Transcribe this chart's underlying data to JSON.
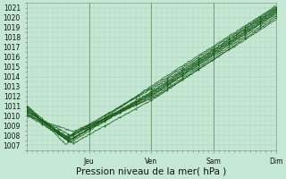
{
  "title": "Pression niveau de la mer( hPa )",
  "ylabel_ticks": [
    1007,
    1008,
    1009,
    1010,
    1011,
    1012,
    1013,
    1014,
    1015,
    1016,
    1017,
    1018,
    1019,
    1020,
    1021
  ],
  "ylim": [
    1006.5,
    1021.5
  ],
  "xlim": [
    0,
    96
  ],
  "x_ticks": [
    24,
    48,
    72,
    96
  ],
  "x_tick_labels": [
    "Jeu",
    "Ven",
    "Sam",
    "Dim"
  ],
  "bg_color": "#c5e8d5",
  "grid_color": "#a8c8b8",
  "line_color": "#1a5c1a",
  "marker_color": "#1a5c1a",
  "text_color": "#111111",
  "font_size": 5.5,
  "label_font_size": 7.5
}
